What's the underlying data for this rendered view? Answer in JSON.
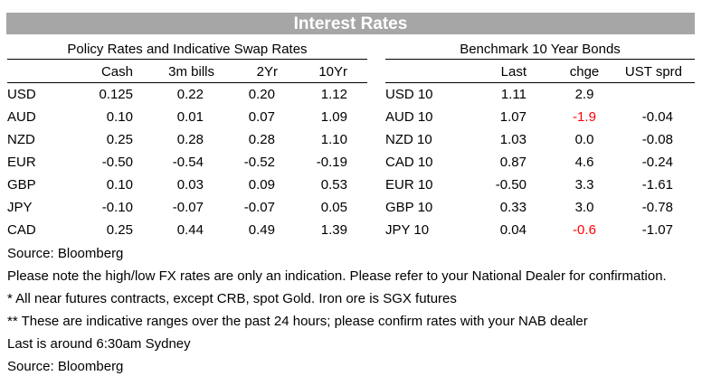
{
  "title": "Interest Rates",
  "left_section": {
    "title": "Policy Rates and Indicative Swap Rates",
    "columns": [
      "Cash",
      "3m bills",
      "2Yr",
      "10Yr"
    ],
    "rows": [
      {
        "label": "USD",
        "values": [
          "0.125",
          "0.22",
          "0.20",
          "1.12"
        ]
      },
      {
        "label": "AUD",
        "values": [
          "0.10",
          "0.01",
          "0.07",
          "1.09"
        ]
      },
      {
        "label": "NZD",
        "values": [
          "0.25",
          "0.28",
          "0.28",
          "1.10"
        ]
      },
      {
        "label": "EUR",
        "values": [
          "-0.50",
          "-0.54",
          "-0.52",
          "-0.19"
        ]
      },
      {
        "label": "GBP",
        "values": [
          "0.10",
          "0.03",
          "0.09",
          "0.53"
        ]
      },
      {
        "label": "JPY",
        "values": [
          "-0.10",
          "-0.07",
          "-0.07",
          "0.05"
        ]
      },
      {
        "label": "CAD",
        "values": [
          "0.25",
          "0.44",
          "0.49",
          "1.39"
        ]
      }
    ]
  },
  "right_section": {
    "title": "Benchmark 10 Year Bonds",
    "columns": [
      "Last",
      "chge",
      "UST sprd"
    ],
    "rows": [
      {
        "label": "USD 10",
        "values": [
          "1.11",
          "2.9",
          ""
        ]
      },
      {
        "label": "AUD 10",
        "values": [
          "1.07",
          "-1.9",
          "-0.04"
        ]
      },
      {
        "label": "NZD 10",
        "values": [
          "1.03",
          "0.0",
          "-0.08"
        ]
      },
      {
        "label": "CAD 10",
        "values": [
          "0.87",
          "4.6",
          "-0.24"
        ]
      },
      {
        "label": "EUR 10",
        "values": [
          "-0.50",
          "3.3",
          "-1.61"
        ]
      },
      {
        "label": "GBP 10",
        "values": [
          "0.33",
          "3.0",
          "-0.78"
        ]
      },
      {
        "label": "JPY 10",
        "values": [
          "0.04",
          "-0.6",
          "-1.07"
        ]
      }
    ]
  },
  "notes": [
    "Source: Bloomberg",
    "Please note the high/low FX rates are only an indication. Please refer to your National Dealer for confirmation.",
    "* All near futures contracts, except CRB, spot Gold.  Iron ore is SGX futures",
    "** These are indicative ranges over the past 24 hours; please confirm rates with your NAB dealer",
    "Last is around 6:30am Sydney",
    "Source: Bloomberg"
  ],
  "colors": {
    "banner": "#a6a6a6",
    "negative_change": "#ff0000"
  }
}
